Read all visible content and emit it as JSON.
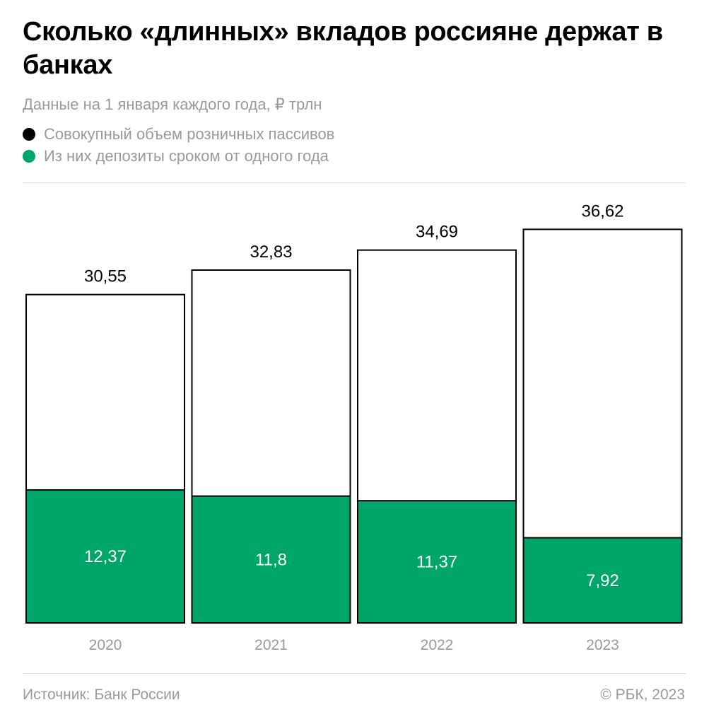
{
  "header": {
    "title": "Сколько «длинных» вкладов россияне держат в банках",
    "subtitle": "Данные на 1 января каждого года, ₽ трлн"
  },
  "legend": [
    {
      "label": "Совокупный объем розничных пассивов",
      "color": "#000000"
    },
    {
      "label": "Из них депозиты сроком от одного года",
      "color": "#00a56a"
    }
  ],
  "footer": {
    "source": "Источник: Банк России",
    "copyright": "© РБК, 2023"
  },
  "chart_data": {
    "type": "bar",
    "categories": [
      "2020",
      "2021",
      "2022",
      "2023"
    ],
    "series": [
      {
        "name": "Совокупный объем розничных пассивов",
        "values": [
          30.55,
          32.83,
          34.69,
          36.62
        ],
        "labels": [
          "30,55",
          "32,83",
          "34,69",
          "36,62"
        ],
        "color": "#ffffff"
      },
      {
        "name": "Из них депозиты сроком от одного года",
        "values": [
          12.37,
          11.8,
          11.37,
          7.92
        ],
        "labels": [
          "12,37",
          "11,8",
          "11,37",
          "7,92"
        ],
        "color": "#00a56a"
      }
    ],
    "ylim": [
      0,
      37.5
    ],
    "grid": false,
    "legend_position": "top-left"
  }
}
